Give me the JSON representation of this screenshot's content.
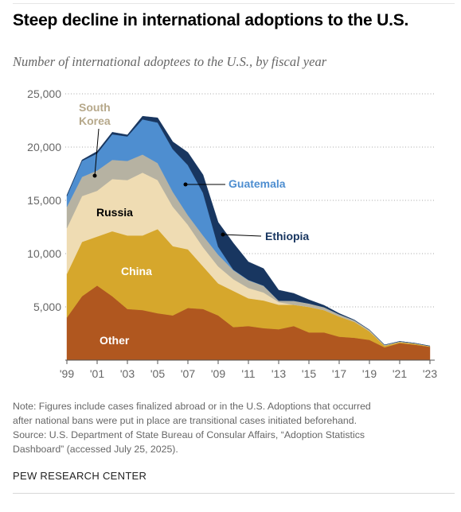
{
  "title": "Steep decline in international adoptions to the U.S.",
  "subtitle": "Number of international adoptees to the U.S., by fiscal year",
  "note_lines": [
    "Note: Figures include cases finalized abroad or in the U.S. Adoptions that occurred",
    "after national bans were put in place are transitional cases initiated beforehand.",
    "Source: U.S. Department of State Bureau of Consular Affairs, “Adoption Statistics",
    "Dashboard” (accessed July 25, 2025)."
  ],
  "brand": "PEW RESEARCH CENTER",
  "chart_data": {
    "type": "area",
    "stacked": true,
    "title": "Steep decline in international adoptions to the U.S.",
    "subtitle": "Number of international adoptees to the U.S., by fiscal year",
    "x": [
      1999,
      2000,
      2001,
      2002,
      2003,
      2004,
      2005,
      2006,
      2007,
      2008,
      2009,
      2010,
      2011,
      2012,
      2013,
      2014,
      2015,
      2016,
      2017,
      2018,
      2019,
      2020,
      2021,
      2022,
      2023
    ],
    "xticks": [
      1999,
      2001,
      2003,
      2005,
      2007,
      2009,
      2011,
      2013,
      2015,
      2017,
      2019,
      2021,
      2023
    ],
    "xtick_labels": [
      "'99",
      "'01",
      "'03",
      "'05",
      "'07",
      "'09",
      "'11",
      "'13",
      "'15",
      "'17",
      "'19",
      "'21",
      "'23"
    ],
    "ylim": [
      0,
      25000
    ],
    "yticks": [
      5000,
      10000,
      15000,
      20000,
      25000
    ],
    "ytick_labels": [
      "5,000",
      "10,000",
      "15,000",
      "20,000",
      "25,000"
    ],
    "grid": true,
    "series": [
      {
        "name": "Other",
        "color": "#b0571f",
        "values": [
          4000,
          6000,
          7000,
          6000,
          4800,
          4700,
          4400,
          4200,
          4900,
          4800,
          4200,
          3100,
          3200,
          3000,
          2900,
          3200,
          2600,
          2600,
          2200,
          2100,
          1900,
          1200,
          1600,
          1450,
          1250
        ]
      },
      {
        "name": "China",
        "color": "#d6a72c",
        "values": [
          4100,
          5100,
          4600,
          6100,
          6900,
          7000,
          7900,
          6500,
          5500,
          4000,
          3000,
          3400,
          2600,
          2600,
          2300,
          2000,
          2400,
          2100,
          1900,
          1500,
          800,
          150,
          100,
          100,
          50
        ]
      },
      {
        "name": "Russia",
        "color": "#efdcb3",
        "values": [
          4300,
          4300,
          4300,
          4900,
          5200,
          5900,
          4600,
          3700,
          2300,
          1800,
          1600,
          1100,
          970,
          750,
          250,
          0,
          0,
          0,
          0,
          0,
          0,
          0,
          0,
          0,
          0
        ]
      },
      {
        "name": "South Korea",
        "color": "#b6b2a2",
        "values": [
          2000,
          1800,
          1900,
          1800,
          1800,
          1700,
          1600,
          1400,
          900,
          1100,
          1100,
          850,
          730,
          630,
          130,
          370,
          320,
          270,
          200,
          150,
          140,
          80,
          60,
          40,
          30
        ]
      },
      {
        "name": "Guatemala",
        "color": "#4e8ed0",
        "values": [
          1000,
          1500,
          1600,
          2400,
          2300,
          3300,
          3800,
          4000,
          4700,
          4000,
          750,
          50,
          30,
          20,
          0,
          0,
          0,
          0,
          0,
          0,
          0,
          0,
          0,
          0,
          0
        ]
      },
      {
        "name": "Ethiopia",
        "color": "#183660",
        "values": [
          100,
          100,
          200,
          200,
          150,
          300,
          450,
          700,
          1200,
          1700,
          2300,
          2500,
          1700,
          1600,
          1000,
          700,
          350,
          180,
          90,
          30,
          0,
          0,
          0,
          0,
          0
        ]
      }
    ],
    "labels": [
      {
        "text": "Other",
        "color": "#ffffff"
      },
      {
        "text": "China",
        "color": "#ffffff"
      },
      {
        "text": "Russia",
        "color": "#000000"
      },
      {
        "text": "South",
        "color": "#b6a88a"
      },
      {
        "text": "Korea",
        "color": "#b6a88a"
      },
      {
        "text": "Guatemala",
        "color": "#4e8ed0"
      },
      {
        "text": "Ethiopia",
        "color": "#183660"
      }
    ]
  }
}
